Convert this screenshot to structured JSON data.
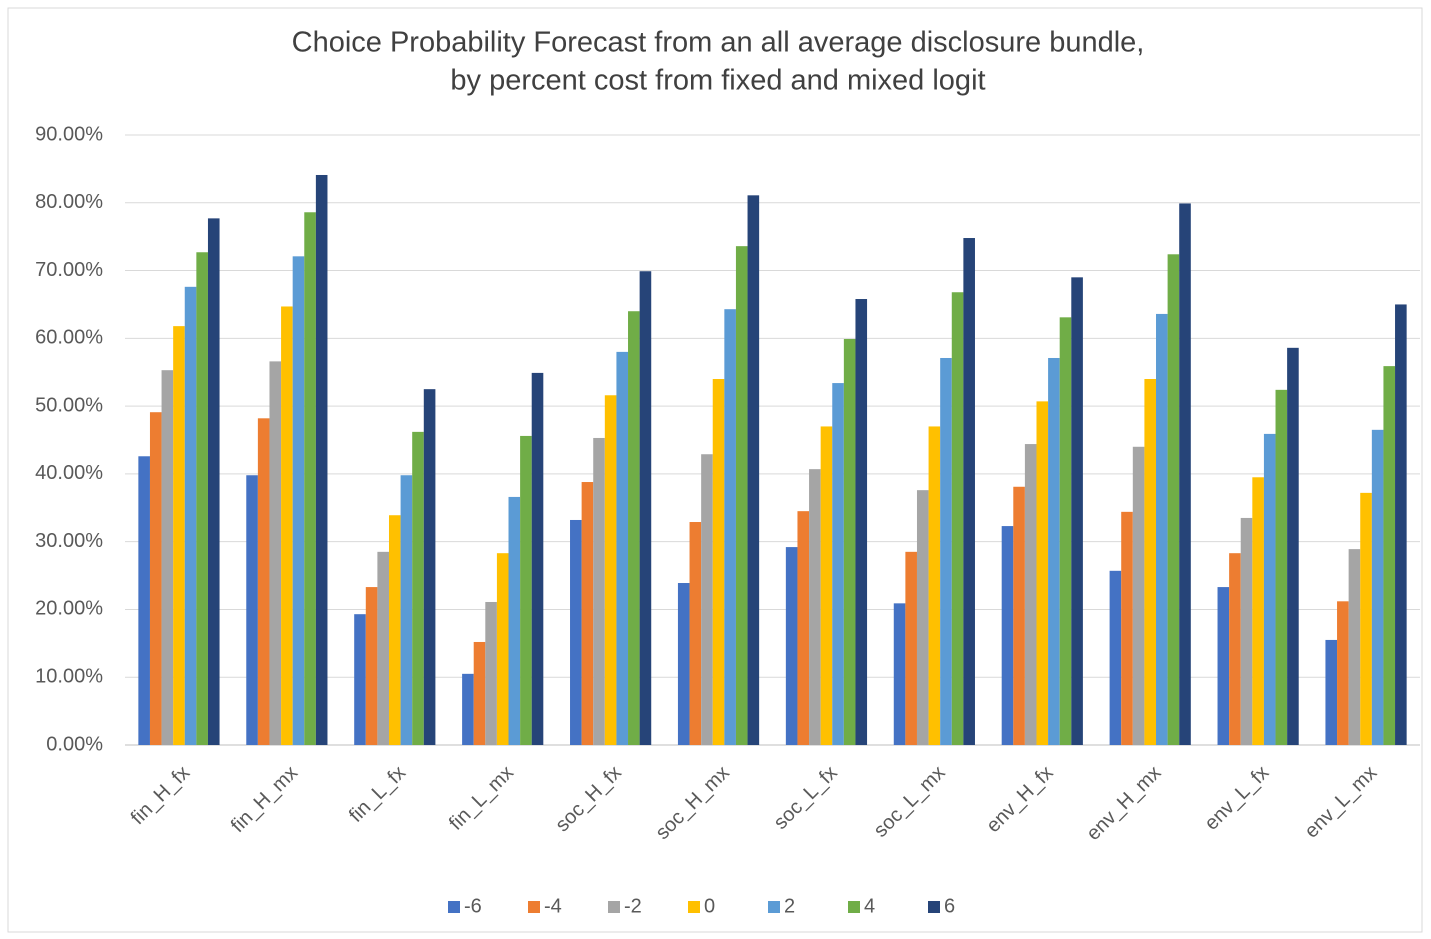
{
  "chart_data": {
    "type": "bar",
    "title": [
      "Choice Probability  Forecast from an all average disclosure bundle,",
      "by percent cost from fixed and mixed logit"
    ],
    "categories": [
      "fin_H_fx",
      "fin_H_mx",
      "fin_L_fx",
      "fin_L_mx",
      "soc_H_fx",
      "soc_H_mx",
      "soc_L_fx",
      "soc_L_mx",
      "env_H_fx",
      "env_H_mx",
      "env_L_fx",
      "env_L_mx"
    ],
    "series": [
      {
        "name": "-6",
        "color": "#4472c4",
        "values": [
          42.6,
          39.8,
          19.3,
          10.5,
          33.2,
          23.9,
          29.2,
          20.9,
          32.3,
          25.7,
          23.3,
          15.5
        ]
      },
      {
        "name": "-4",
        "color": "#ed7d31",
        "values": [
          49.1,
          48.2,
          23.3,
          15.2,
          38.8,
          32.9,
          34.5,
          28.5,
          38.1,
          34.4,
          28.3,
          21.2
        ]
      },
      {
        "name": "-2",
        "color": "#a5a5a5",
        "values": [
          55.3,
          56.6,
          28.5,
          21.1,
          45.3,
          42.9,
          40.7,
          37.6,
          44.4,
          44.0,
          33.5,
          28.9
        ]
      },
      {
        "name": "0",
        "color": "#ffc000",
        "values": [
          61.8,
          64.7,
          33.9,
          28.3,
          51.6,
          54.0,
          47.0,
          47.0,
          50.7,
          54.0,
          39.5,
          37.2
        ]
      },
      {
        "name": "2",
        "color": "#5b9bd5",
        "values": [
          67.6,
          72.1,
          39.8,
          36.6,
          58.0,
          64.3,
          53.4,
          57.1,
          57.1,
          63.6,
          45.9,
          46.5
        ]
      },
      {
        "name": "4",
        "color": "#70ad47",
        "values": [
          72.7,
          78.6,
          46.2,
          45.6,
          64.0,
          73.6,
          59.9,
          66.8,
          63.1,
          72.4,
          52.4,
          55.9
        ]
      },
      {
        "name": "6",
        "color": "#264478",
        "values": [
          77.7,
          84.1,
          52.5,
          54.9,
          69.9,
          81.1,
          65.8,
          74.8,
          69.0,
          79.9,
          58.6,
          65.0
        ]
      }
    ],
    "ylim": [
      0,
      90
    ],
    "yticks": [
      {
        "value": 0,
        "label": "0.00%"
      },
      {
        "value": 10,
        "label": "10.00%"
      },
      {
        "value": 20,
        "label": "20.00%"
      },
      {
        "value": 30,
        "label": "30.00%"
      },
      {
        "value": 40,
        "label": "40.00%"
      },
      {
        "value": 50,
        "label": "50.00%"
      },
      {
        "value": 60,
        "label": "60.00%"
      },
      {
        "value": 70,
        "label": "70.00%"
      },
      {
        "value": 80,
        "label": "80.00%"
      },
      {
        "value": 90,
        "label": "90.00%"
      }
    ],
    "grid": true,
    "legend": "bottom"
  }
}
